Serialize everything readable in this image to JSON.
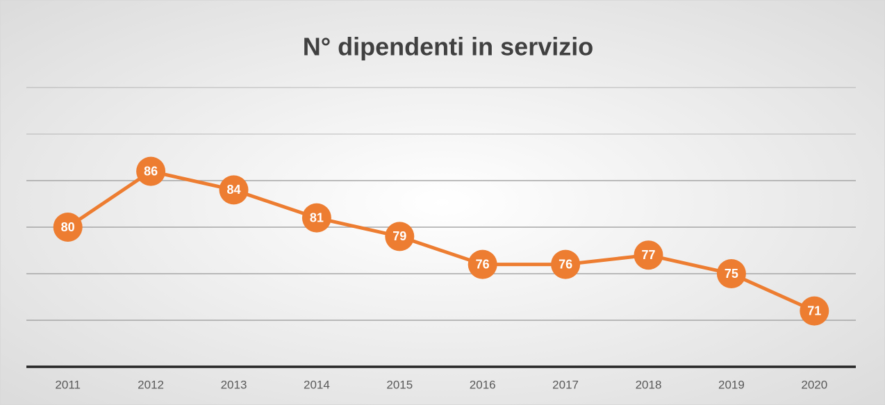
{
  "chart_data": {
    "type": "line",
    "title": "N° dipendenti in servizio",
    "categories": [
      "2011",
      "2012",
      "2013",
      "2014",
      "2015",
      "2016",
      "2017",
      "2018",
      "2019",
      "2020"
    ],
    "values": [
      80,
      86,
      84,
      81,
      79,
      76,
      76,
      77,
      75,
      71
    ],
    "color": "#ed7d31",
    "ylim": [
      65,
      95
    ],
    "yticks": [
      65,
      70,
      75,
      80,
      85,
      90,
      95
    ],
    "grid": true
  }
}
